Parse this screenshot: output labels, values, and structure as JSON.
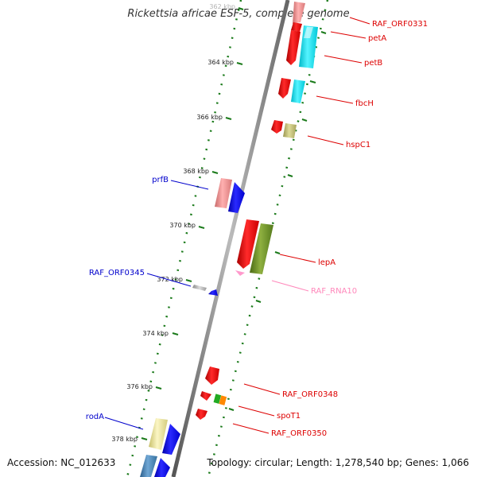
{
  "title": "Rickettsia africae ESF-5, complete genome",
  "accession": "Accession: NC_012633",
  "topology": "Topology: circular; Length: 1,278,540 bp; Genes: 1,066",
  "ticks": [
    "362 kbp",
    "364 kbp",
    "366 kbp",
    "368 kbp",
    "370 kbp",
    "372 kbp",
    "374 kbp",
    "376 kbp",
    "378 kbp"
  ],
  "genes": [
    {
      "label": "RAF_ORF0331",
      "color": "#dd0000",
      "fill": "#ff6f6f"
    },
    {
      "label": "petA",
      "color": "#dd0000",
      "fill": "#00e5ee"
    },
    {
      "label": "petB",
      "color": "#dd0000",
      "fill": "#00e5ee"
    },
    {
      "label": "fbcH",
      "color": "#dd0000",
      "fill": "#00e5ee"
    },
    {
      "label": "hspC1",
      "color": "#dd0000",
      "fill": "#b8b56a"
    },
    {
      "label": "prfB",
      "color": "#0000cc",
      "fill": "#e88888"
    },
    {
      "label": "lepA",
      "color": "#dd0000",
      "fill": "#6b8e23"
    },
    {
      "label": "RAF_ORF0345",
      "color": "#0000cc",
      "fill": "#bbbbbb"
    },
    {
      "label": "RAF_RNA10",
      "color": "#ff88bb",
      "fill": "#ff99cc"
    },
    {
      "label": "RAF_ORF0348",
      "color": "#dd0000",
      "fill": "#ee0000"
    },
    {
      "label": "spoT1",
      "color": "#dd0000",
      "fill": "#22aa22"
    },
    {
      "label": "RAF_ORF0350",
      "color": "#dd0000",
      "fill": "#ee0000"
    },
    {
      "label": "rodA",
      "color": "#0000cc",
      "fill": "#e8e099"
    }
  ],
  "colors": {
    "backbone": "#8a8a8a",
    "tick_dots": "#1a7a1a",
    "forward": "#ee0000",
    "reverse": "#0000ee"
  }
}
